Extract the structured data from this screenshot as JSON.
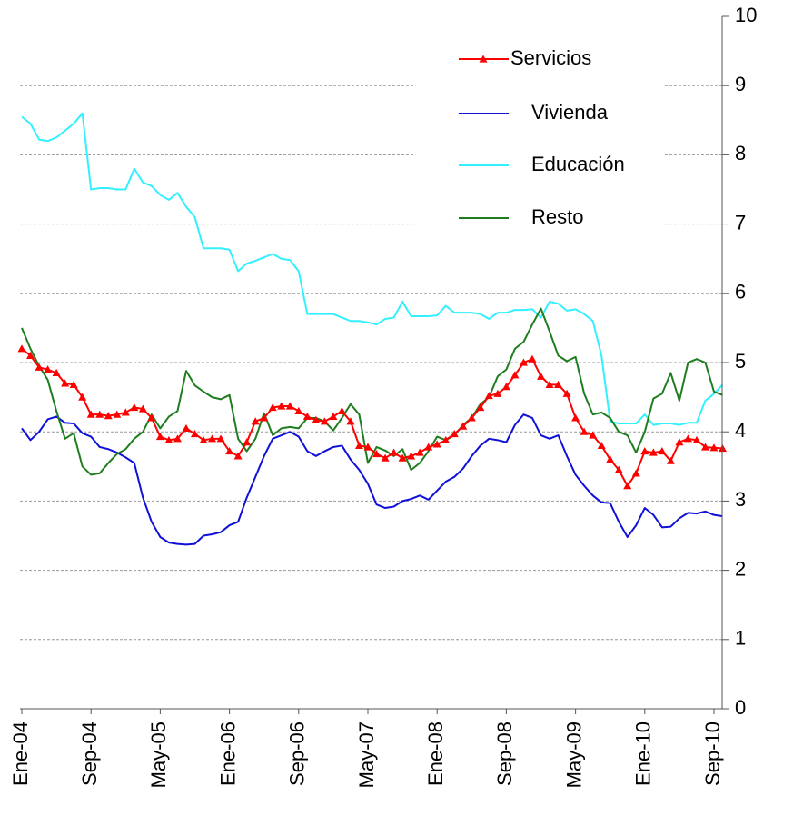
{
  "chart_data": {
    "type": "line",
    "categories": [
      "Ene-04",
      null,
      null,
      null,
      null,
      null,
      null,
      null,
      "Sep-04",
      null,
      null,
      null,
      null,
      null,
      null,
      null,
      "May-05",
      null,
      null,
      null,
      null,
      null,
      null,
      null,
      "Ene-06",
      null,
      null,
      null,
      null,
      null,
      null,
      null,
      "Sep-06",
      null,
      null,
      null,
      null,
      null,
      null,
      null,
      "May-07",
      null,
      null,
      null,
      null,
      null,
      null,
      null,
      "Ene-08",
      null,
      null,
      null,
      null,
      null,
      null,
      null,
      "Sep-08",
      null,
      null,
      null,
      null,
      null,
      null,
      null,
      "May-09",
      null,
      null,
      null,
      null,
      null,
      null,
      null,
      "Ene-10",
      null,
      null,
      null,
      null,
      null,
      null,
      null,
      "Sep-10",
      null
    ],
    "series": [
      {
        "name": "Servicios",
        "color": "#ff0000",
        "marker": "triangle",
        "values": [
          5.2,
          5.1,
          4.93,
          4.9,
          4.85,
          4.7,
          4.68,
          4.5,
          4.25,
          4.25,
          4.23,
          4.25,
          4.28,
          4.35,
          4.33,
          4.2,
          3.93,
          3.88,
          3.9,
          4.05,
          3.97,
          3.88,
          3.9,
          3.9,
          3.72,
          3.65,
          3.85,
          4.15,
          4.2,
          4.35,
          4.37,
          4.37,
          4.3,
          4.22,
          4.17,
          4.15,
          4.22,
          4.3,
          4.15,
          3.8,
          3.78,
          3.68,
          3.62,
          3.7,
          3.62,
          3.65,
          3.7,
          3.78,
          3.82,
          3.88,
          3.97,
          4.08,
          4.2,
          4.35,
          4.52,
          4.55,
          4.65,
          4.82,
          5.0,
          5.05,
          4.8,
          4.68,
          4.68,
          4.55,
          4.2,
          4.0,
          3.95,
          3.8,
          3.6,
          3.45,
          3.22,
          3.4,
          3.72,
          3.7,
          3.72,
          3.58,
          3.85,
          3.9,
          3.88,
          3.78,
          3.77,
          3.76
        ]
      },
      {
        "name": "Vivienda",
        "color": "#1010d8",
        "values": [
          4.05,
          3.88,
          4.0,
          4.18,
          4.22,
          4.13,
          4.12,
          3.98,
          3.93,
          3.78,
          3.75,
          3.7,
          3.63,
          3.55,
          3.05,
          2.7,
          2.48,
          2.4,
          2.38,
          2.37,
          2.38,
          2.5,
          2.52,
          2.55,
          2.65,
          2.7,
          3.05,
          3.35,
          3.65,
          3.9,
          3.95,
          4.0,
          3.93,
          3.72,
          3.65,
          3.72,
          3.78,
          3.8,
          3.6,
          3.45,
          3.25,
          2.95,
          2.9,
          2.92,
          3.0,
          3.03,
          3.08,
          3.02,
          3.15,
          3.28,
          3.35,
          3.47,
          3.65,
          3.8,
          3.9,
          3.88,
          3.85,
          4.1,
          4.25,
          4.2,
          3.95,
          3.9,
          3.95,
          3.65,
          3.38,
          3.22,
          3.08,
          2.98,
          2.97,
          2.7,
          2.48,
          2.65,
          2.9,
          2.8,
          2.62,
          2.63,
          2.75,
          2.83,
          2.82,
          2.85,
          2.8,
          2.78
        ]
      },
      {
        "name": "Educación",
        "color": "#33f0ff",
        "values": [
          8.55,
          8.45,
          8.22,
          8.2,
          8.25,
          8.35,
          8.45,
          8.6,
          7.5,
          7.52,
          7.52,
          7.5,
          7.5,
          7.8,
          7.6,
          7.55,
          7.42,
          7.35,
          7.45,
          7.25,
          7.1,
          6.65,
          6.65,
          6.65,
          6.63,
          6.32,
          6.43,
          6.47,
          6.52,
          6.57,
          6.5,
          6.48,
          6.32,
          5.7,
          5.7,
          5.7,
          5.7,
          5.65,
          5.6,
          5.6,
          5.58,
          5.55,
          5.63,
          5.65,
          5.88,
          5.67,
          5.67,
          5.67,
          5.68,
          5.82,
          5.72,
          5.72,
          5.72,
          5.7,
          5.63,
          5.72,
          5.72,
          5.76,
          5.76,
          5.77,
          5.65,
          5.88,
          5.85,
          5.75,
          5.77,
          5.7,
          5.6,
          5.1,
          4.15,
          4.12,
          4.12,
          4.12,
          4.25,
          4.1,
          4.12,
          4.12,
          4.1,
          4.13,
          4.13,
          4.45,
          4.55,
          4.68
        ]
      },
      {
        "name": "Resto",
        "color": "#1e7d1e",
        "values": [
          5.5,
          5.2,
          4.95,
          4.75,
          4.3,
          3.9,
          3.98,
          3.5,
          3.38,
          3.4,
          3.55,
          3.68,
          3.75,
          3.9,
          4.0,
          4.25,
          4.05,
          4.22,
          4.3,
          4.88,
          4.67,
          4.58,
          4.5,
          4.47,
          4.53,
          3.9,
          3.72,
          3.9,
          4.27,
          3.95,
          4.05,
          4.07,
          4.05,
          4.2,
          4.2,
          4.15,
          4.02,
          4.2,
          4.4,
          4.25,
          3.55,
          3.78,
          3.73,
          3.65,
          3.75,
          3.45,
          3.55,
          3.72,
          3.93,
          3.88,
          3.95,
          4.1,
          4.2,
          4.4,
          4.5,
          4.8,
          4.9,
          5.2,
          5.3,
          5.55,
          5.78,
          5.45,
          5.1,
          5.02,
          5.08,
          4.55,
          4.25,
          4.28,
          4.2,
          4.0,
          3.95,
          3.7,
          4.0,
          4.48,
          4.55,
          4.85,
          4.45,
          5.0,
          5.05,
          5.0,
          4.58,
          4.53
        ]
      }
    ],
    "ylim": [
      0,
      10
    ],
    "yticks": [
      0,
      1,
      2,
      3,
      4,
      5,
      6,
      7,
      8,
      9,
      10
    ],
    "y_axis_side": "right",
    "grid": true,
    "grid_style": "dashed",
    "legend": "top-right"
  }
}
